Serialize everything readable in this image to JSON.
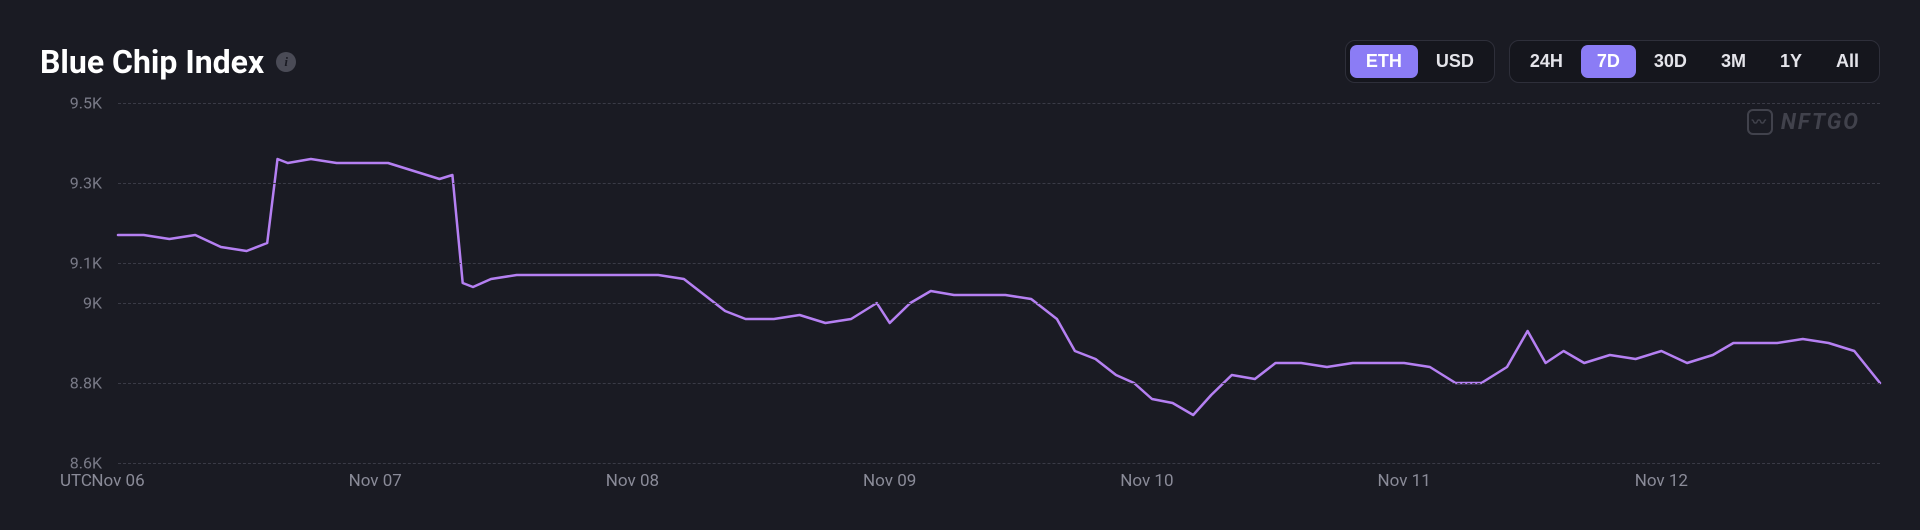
{
  "title": "Blue Chip Index",
  "watermark_text": "NFTGO",
  "currency_toggle": {
    "options": [
      "ETH",
      "USD"
    ],
    "active": "ETH"
  },
  "range_toggle": {
    "options": [
      "24H",
      "7D",
      "30D",
      "3M",
      "1Y",
      "All"
    ],
    "active": "7D"
  },
  "chart": {
    "type": "line",
    "line_color": "#b580f2",
    "line_width": 2.5,
    "background_color": "#1a1b23",
    "grid_color": "#3a3b46",
    "axis_label_color": "#8a8b98",
    "y_axis": {
      "min": 8.6,
      "max": 9.5,
      "ticks": [
        8.6,
        8.8,
        9.0,
        9.1,
        9.3,
        9.5
      ],
      "tick_labels": [
        "8.6K",
        "8.8K",
        "9K",
        "9.1K",
        "9.3K",
        "9.5K"
      ],
      "label_fontsize": 16
    },
    "x_axis": {
      "utc_label": "UTC",
      "ticks": [
        0,
        1,
        2,
        3,
        4,
        5,
        6
      ],
      "tick_labels": [
        "Nov 06",
        "Nov 07",
        "Nov 08",
        "Nov 09",
        "Nov 10",
        "Nov 11",
        "Nov 12"
      ],
      "label_fontsize": 17,
      "domain_max": 6.85
    },
    "series": {
      "x": [
        0.0,
        0.1,
        0.2,
        0.3,
        0.4,
        0.5,
        0.58,
        0.62,
        0.66,
        0.75,
        0.85,
        0.95,
        1.05,
        1.15,
        1.25,
        1.3,
        1.34,
        1.38,
        1.45,
        1.55,
        1.65,
        1.8,
        1.95,
        2.1,
        2.2,
        2.28,
        2.36,
        2.44,
        2.55,
        2.65,
        2.75,
        2.85,
        2.95,
        3.0,
        3.08,
        3.16,
        3.25,
        3.35,
        3.45,
        3.55,
        3.65,
        3.72,
        3.8,
        3.88,
        3.95,
        4.02,
        4.1,
        4.18,
        4.25,
        4.33,
        4.42,
        4.5,
        4.6,
        4.7,
        4.8,
        4.9,
        5.0,
        5.1,
        5.2,
        5.3,
        5.4,
        5.48,
        5.55,
        5.62,
        5.7,
        5.8,
        5.9,
        6.0,
        6.1,
        6.2,
        6.28,
        6.36,
        6.45,
        6.55,
        6.65,
        6.75,
        6.85
      ],
      "y": [
        9.17,
        9.17,
        9.16,
        9.17,
        9.14,
        9.13,
        9.15,
        9.36,
        9.35,
        9.36,
        9.35,
        9.35,
        9.35,
        9.33,
        9.31,
        9.32,
        9.05,
        9.04,
        9.06,
        9.07,
        9.07,
        9.07,
        9.07,
        9.07,
        9.06,
        9.02,
        8.98,
        8.96,
        8.96,
        8.97,
        8.95,
        8.96,
        9.0,
        8.95,
        9.0,
        9.03,
        9.02,
        9.02,
        9.02,
        9.01,
        8.96,
        8.88,
        8.86,
        8.82,
        8.8,
        8.76,
        8.75,
        8.72,
        8.77,
        8.82,
        8.81,
        8.85,
        8.85,
        8.84,
        8.85,
        8.85,
        8.85,
        8.84,
        8.8,
        8.8,
        8.84,
        8.93,
        8.85,
        8.88,
        8.85,
        8.87,
        8.86,
        8.88,
        8.85,
        8.87,
        8.9,
        8.9,
        8.9,
        8.91,
        8.9,
        8.88,
        8.8
      ]
    }
  }
}
